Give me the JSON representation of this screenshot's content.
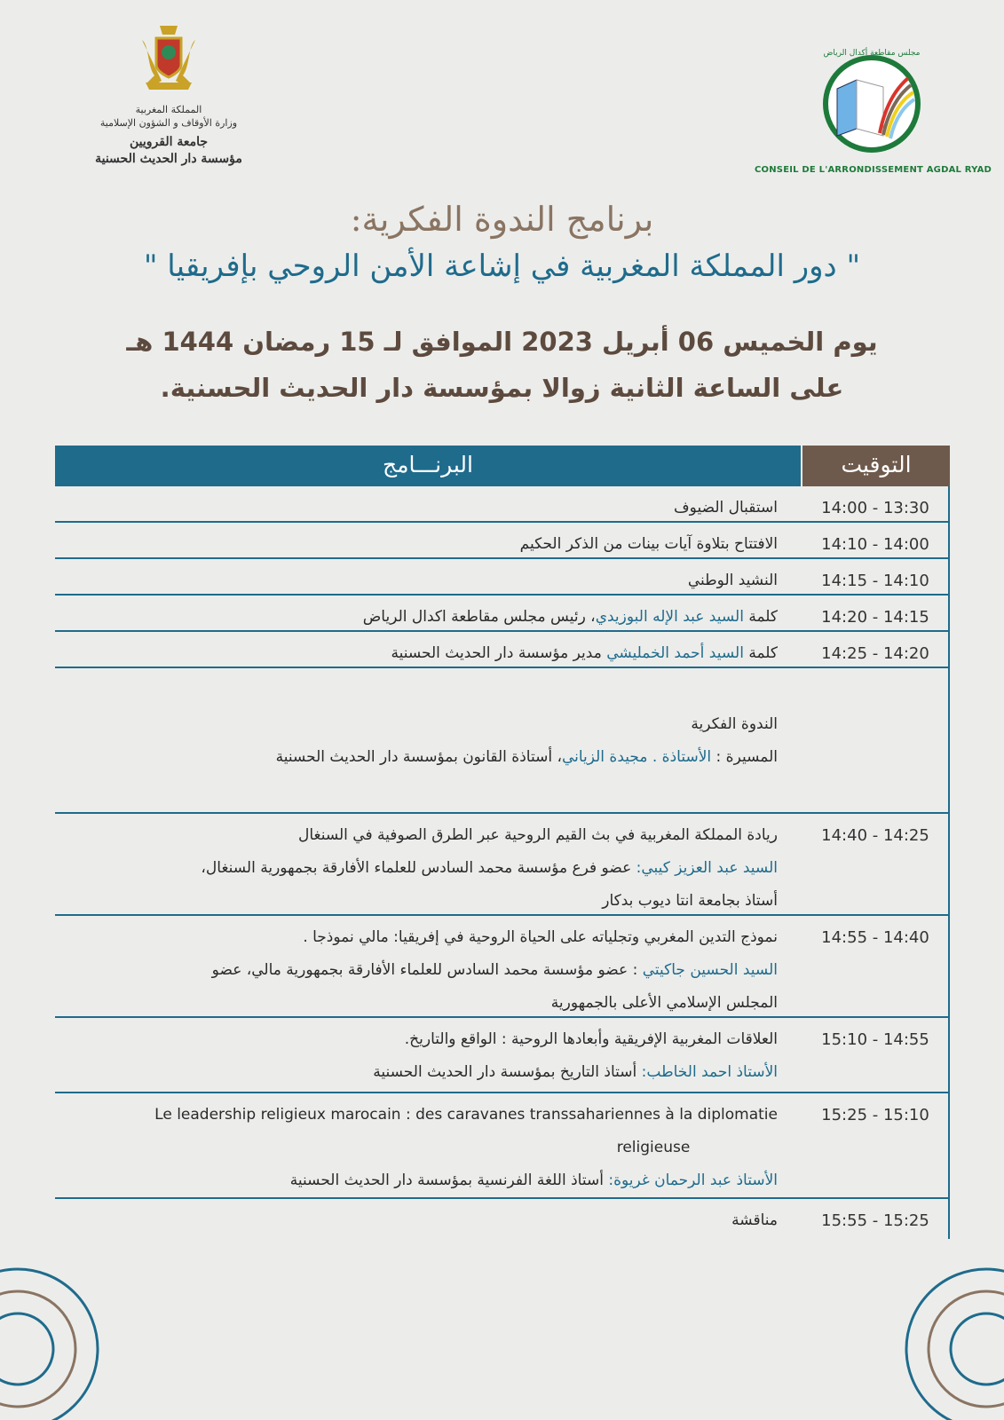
{
  "header": {
    "left_logo": {
      "lines": [
        "المملكة المغربية",
        "وزارة الأوقاف و الشؤون الإسلامية",
        "جامعة القرويين",
        "مؤسسة دار الحديث الحسنية"
      ]
    },
    "right_logo": {
      "arabic": "مجلس مقاطعة أكدال الرياض",
      "french": "CONSEIL DE L'ARRONDISSEMENT AGDAL RYAD"
    }
  },
  "title": {
    "line1": "برنامج الندوة الفكرية:",
    "line2": "\" دور المملكة المغربية في إشاعة الأمن الروحي بإفريقيا \"",
    "line3": "يوم الخميس 06 أبريل 2023 الموافق لـ 15 رمضان 1444 هـ",
    "line4": "على الساعة الثانية زوالا بمؤسسة دار الحديث الحسنية."
  },
  "colors": {
    "teal": "#1f6b8c",
    "brown": "#6e5a4c",
    "background": "#ecedeb"
  },
  "table": {
    "program_header": "البرنـــامج",
    "time_header": "التوقيت",
    "rows": [
      {
        "time": "14:00 - 13:30",
        "lines": [
          {
            "text": "استقبال الضيوف"
          }
        ]
      },
      {
        "time": "14:10 - 14:00",
        "lines": [
          {
            "text": "الافتتاح بتلاوة آيات بينات من الذكر الحكيم"
          }
        ]
      },
      {
        "time": "14:15 - 14:10",
        "lines": [
          {
            "text": "النشيد الوطني"
          }
        ]
      },
      {
        "time": "14:20 - 14:15",
        "lines": [
          {
            "pre": "كلمة ",
            "speaker": "السيد عبد الإله البوزيدي",
            "text": "، رئيس مجلس مقاطعة اكدال الرياض"
          }
        ]
      },
      {
        "time": "14:25 - 14:20",
        "lines": [
          {
            "pre": "كلمة ",
            "speaker": "السيد أحمد الخمليشي",
            "text": " مدير مؤسسة دار الحديث الحسنية"
          }
        ]
      },
      {
        "time": "",
        "lines": [
          {
            "text": "الندوة الفكرية"
          },
          {
            "pre": "المسيرة :  ",
            "speaker": "الأستاذة . مجيدة الزياني",
            "text": "، أستاذة القانون بمؤسسة دار الحديث الحسنية"
          }
        ]
      },
      {
        "time": "14:40 - 14:25",
        "lines": [
          {
            "text": "ريادة المملكة المغربية في بث القيم الروحية عبر الطرق الصوفية في السنغال"
          },
          {
            "speaker": "السيد عبد العزيز كيبي:",
            "text": " عضو فرع مؤسسة محمد السادس للعلماء الأفارقة بجمهورية السنغال،"
          },
          {
            "text": "أستاذ بجامعة انتا ديوب بدكار"
          }
        ]
      },
      {
        "time": "14:55 - 14:40",
        "lines": [
          {
            "text": "نموذج التدين المغربي وتجلياته على الحياة الروحية في إفريقيا: مالي نموذجا ."
          },
          {
            "speaker": "السيد الحسين جاكيتي",
            "text": " : عضو مؤسسة محمد السادس للعلماء الأفارقة بجمهورية مالي، عضو"
          },
          {
            "text": "المجلس الإسلامي الأعلى بالجمهورية"
          }
        ]
      },
      {
        "time": "15:10 - 14:55",
        "lines": [
          {
            "text": "العلاقات المغربية الإفريقية وأبعادها الروحية : الواقع والتاريخ."
          },
          {
            "speaker": "الأستاذ احمد الخاطب:",
            "text": "  أستاذ التاريخ بمؤسسة دار الحديث الحسنية"
          }
        ]
      },
      {
        "time": "15:25 - 15:10",
        "lines": [
          {
            "text": "Le leadership religieux marocain : des caravanes transsahariennes à la diplomatie",
            "fr": true
          },
          {
            "text": "religieuse",
            "fr2": true
          },
          {
            "speaker": "الأستاذ عبد الرحمان غريوة:",
            "text": " أستاذ اللغة الفرنسية بمؤسسة دار الحديث الحسنية"
          }
        ]
      },
      {
        "time": "15:55 - 15:25",
        "lines": [
          {
            "text": "مناقشة"
          }
        ]
      }
    ]
  }
}
